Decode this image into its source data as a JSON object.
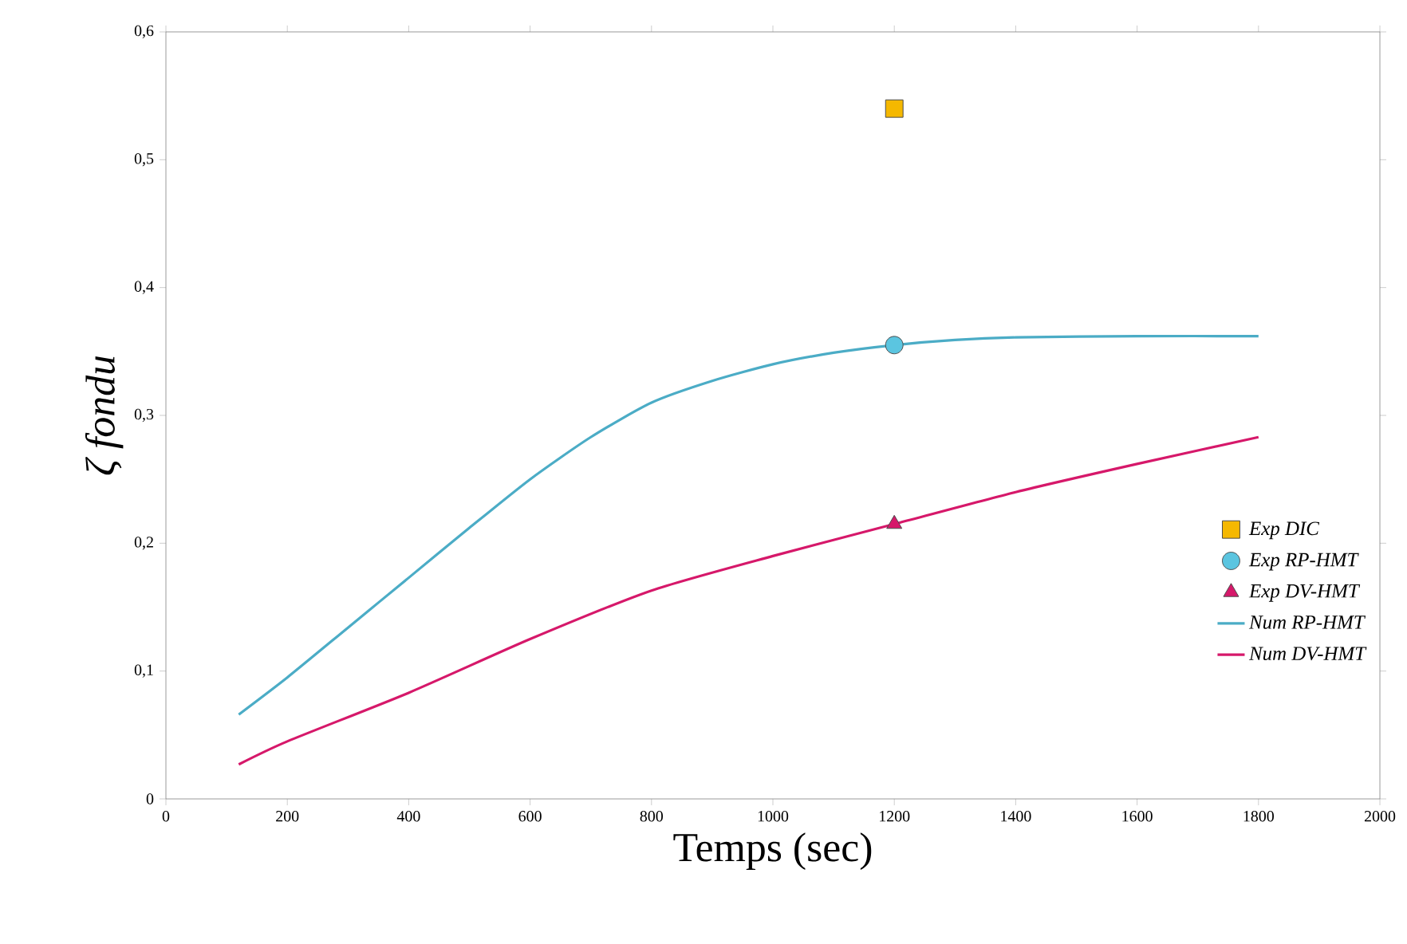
{
  "chart_data": {
    "type": "line",
    "xlabel": "Temps (sec)",
    "ylabel": "ζ fondu",
    "xlim": [
      0,
      2000
    ],
    "ylim": [
      0,
      0.6
    ],
    "xticks": [
      0,
      200,
      400,
      600,
      800,
      1000,
      1200,
      1400,
      1600,
      1800,
      2000
    ],
    "yticks": [
      0,
      {
        "value": 0.1,
        "label": "0,1"
      },
      {
        "value": 0.2,
        "label": "0,2"
      },
      {
        "value": 0.3,
        "label": "0,3"
      },
      {
        "value": 0.4,
        "label": "0,4"
      },
      {
        "value": 0.5,
        "label": "0,5"
      },
      {
        "value": 0.6,
        "label": "0,6"
      }
    ],
    "legend": "right",
    "grid": false,
    "series": [
      {
        "name": "Exp DIC",
        "type": "scatter",
        "marker": "square",
        "color": "#f5b800",
        "x": [
          1200
        ],
        "values": [
          0.54
        ]
      },
      {
        "name": "Exp RP-HMT",
        "type": "scatter",
        "marker": "circle",
        "color": "#5bc5e0",
        "x": [
          1200
        ],
        "values": [
          0.355
        ]
      },
      {
        "name": "Exp DV-HMT",
        "type": "scatter",
        "marker": "triangle",
        "color": "#d6186a",
        "x": [
          1200
        ],
        "values": [
          0.215
        ]
      },
      {
        "name": "Num RP-HMT",
        "color": "#4bacc6",
        "x": [
          120,
          200,
          300,
          400,
          500,
          600,
          700,
          800,
          900,
          1000,
          1100,
          1200,
          1300,
          1400,
          1600,
          1800
        ],
        "values": [
          0.066,
          0.095,
          0.134,
          0.173,
          0.212,
          0.25,
          0.283,
          0.31,
          0.327,
          0.34,
          0.349,
          0.355,
          0.359,
          0.361,
          0.362,
          0.362
        ]
      },
      {
        "name": "Num DV-HMT",
        "color": "#d6186a",
        "x": [
          120,
          200,
          400,
          600,
          800,
          1000,
          1200,
          1400,
          1600,
          1800
        ],
        "values": [
          0.027,
          0.045,
          0.083,
          0.125,
          0.163,
          0.19,
          0.215,
          0.24,
          0.262,
          0.283
        ]
      }
    ]
  }
}
